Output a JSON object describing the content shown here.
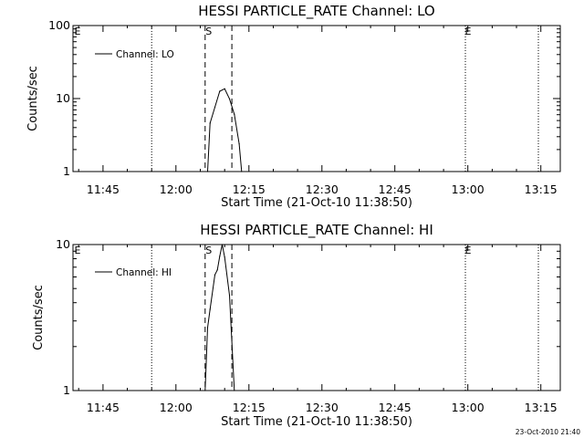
{
  "stamp": "23-Oct-2010 21:40",
  "x_ticks": [
    "11:45",
    "12:00",
    "12:15",
    "12:30",
    "12:45",
    "13:00",
    "13:15"
  ],
  "x_tick_minutes": [
    705,
    720,
    735,
    750,
    765,
    780,
    795
  ],
  "chart_data": [
    {
      "type": "line",
      "title": "HESSI PARTICLE_RATE Channel: LO",
      "xlabel": "Start Time (21-Oct-10 11:38:50)",
      "ylabel": "Counts/sec",
      "xlim": [
        "11:38:50",
        "13:19:00"
      ],
      "ylim": [
        1,
        100
      ],
      "yscale": "log",
      "y_ticks": [
        "1",
        "10",
        "100"
      ],
      "y_tick_values": [
        1,
        10,
        100
      ],
      "legend": "top-left",
      "series": [
        {
          "name": "Channel: LO",
          "x": [
            "12:06:30",
            "12:07:00",
            "12:08:00",
            "12:09:00",
            "12:10:00",
            "12:11:00",
            "12:12:00",
            "12:13:00",
            "12:13:30"
          ],
          "y": [
            1,
            4.6,
            7.6,
            12.6,
            13.6,
            9.9,
            6.1,
            2.4,
            1
          ]
        }
      ],
      "vertical_markers": [
        {
          "time": "11:38:50",
          "style": "dotted",
          "label": "E"
        },
        {
          "time": "11:55:00",
          "style": "dotted",
          "label": ""
        },
        {
          "time": "12:06:00",
          "style": "dashed",
          "label": "S"
        },
        {
          "time": "12:11:30",
          "style": "dashed",
          "label": ""
        },
        {
          "time": "12:59:30",
          "style": "dotted",
          "label": "E"
        },
        {
          "time": "13:14:30",
          "style": "dotted",
          "label": ""
        }
      ]
    },
    {
      "type": "line",
      "title": "HESSI PARTICLE_RATE Channel: HI",
      "xlabel": "Start Time (21-Oct-10 11:38:50)",
      "ylabel": "Counts/sec",
      "xlim": [
        "11:38:50",
        "13:19:00"
      ],
      "ylim": [
        1,
        10
      ],
      "yscale": "log",
      "y_ticks": [
        "1",
        "10"
      ],
      "y_tick_values": [
        1,
        10
      ],
      "legend": "top-left",
      "series": [
        {
          "name": "Channel: HI",
          "x": [
            "12:06:00",
            "12:06:30",
            "12:07:00",
            "12:08:00",
            "12:08:30",
            "12:09:00",
            "12:09:30",
            "12:10:00",
            "12:11:00",
            "12:12:00"
          ],
          "y": [
            1,
            2.7,
            3.6,
            6.2,
            6.7,
            8.3,
            10.0,
            8.2,
            4.5,
            1
          ]
        }
      ],
      "vertical_markers": [
        {
          "time": "11:38:50",
          "style": "dotted",
          "label": "E"
        },
        {
          "time": "11:55:00",
          "style": "dotted",
          "label": ""
        },
        {
          "time": "12:06:00",
          "style": "dashed",
          "label": "S"
        },
        {
          "time": "12:11:30",
          "style": "dashed",
          "label": ""
        },
        {
          "time": "12:59:30",
          "style": "dotted",
          "label": "E"
        },
        {
          "time": "13:14:30",
          "style": "dotted",
          "label": ""
        }
      ]
    }
  ]
}
